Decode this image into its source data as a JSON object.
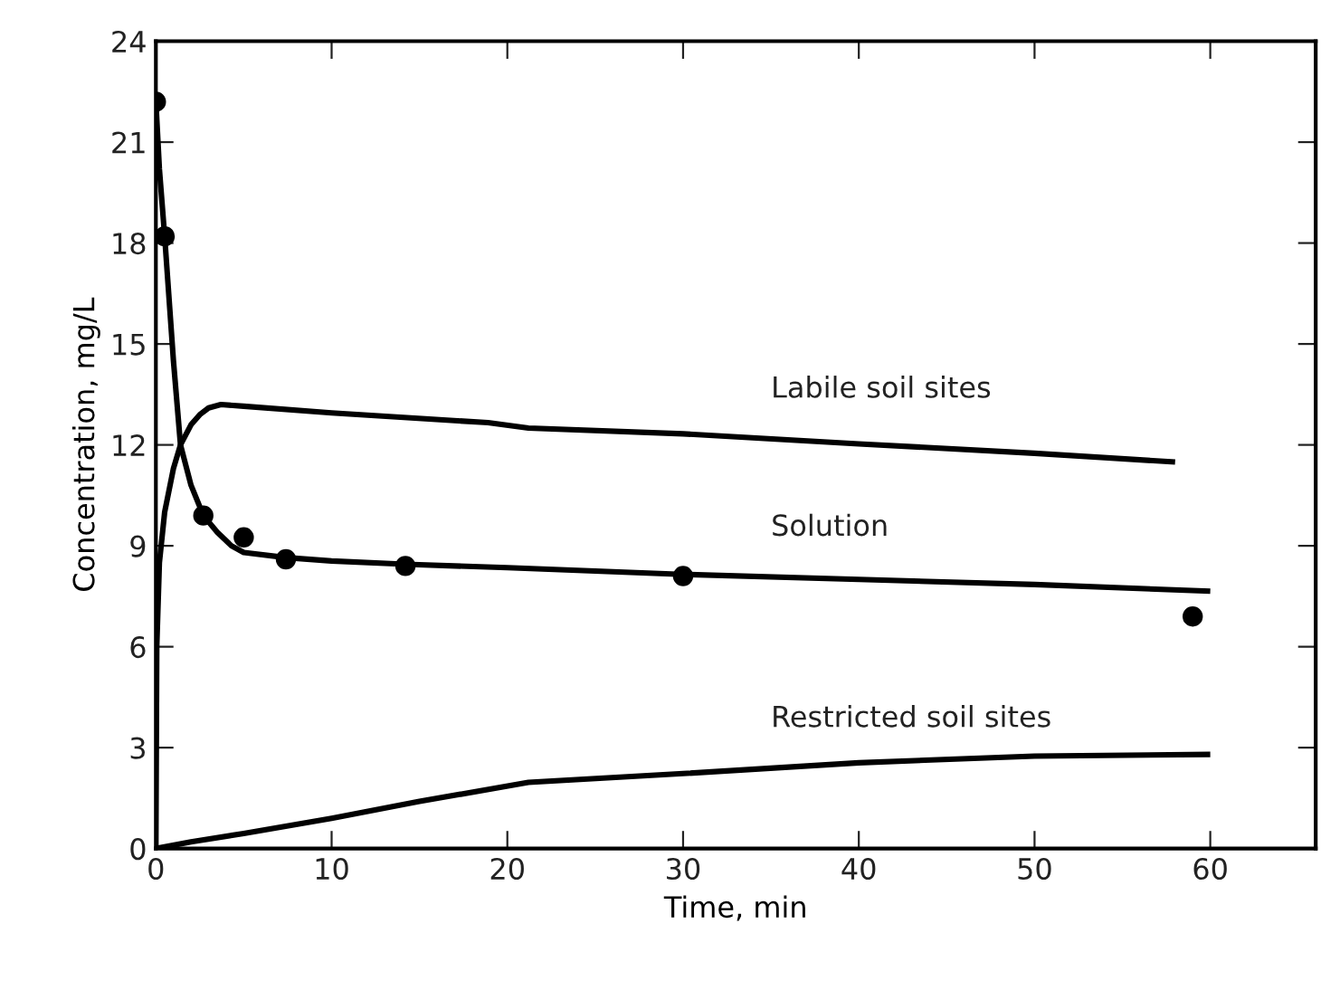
{
  "chart_data": {
    "type": "line",
    "xlabel": "Time, min",
    "ylabel": "Concentration, mg/L",
    "xlim": [
      0,
      66
    ],
    "ylim": [
      0,
      24
    ],
    "xticks": [
      0,
      10,
      20,
      30,
      40,
      50,
      60
    ],
    "yticks": [
      0,
      3,
      6,
      9,
      12,
      15,
      18,
      21,
      24
    ],
    "grid": false,
    "legend": false,
    "series": [
      {
        "name": "Labile soil sites",
        "color": "#000000",
        "marker": "none",
        "x": [
          0,
          0.05,
          0.2,
          0.5,
          1,
          1.4,
          2,
          2.5,
          3,
          3.7,
          5,
          10,
          18.9,
          21.2,
          30,
          40,
          50,
          58
        ],
        "values": [
          0,
          6,
          8.5,
          10,
          11.3,
          12,
          12.6,
          12.9,
          13.1,
          13.2,
          13.15,
          12.95,
          12.66,
          12.5,
          12.33,
          12.03,
          11.75,
          11.49
        ]
      },
      {
        "name": "Solution",
        "color": "#000000",
        "marker": "none",
        "x": [
          0,
          0.2,
          0.5,
          1,
          1.4,
          2,
          2.7,
          3.5,
          4.3,
          5,
          7.4,
          10,
          14.2,
          20,
          30,
          40,
          50,
          60
        ],
        "values": [
          22.2,
          20.2,
          18.2,
          14.5,
          12,
          10.8,
          9.9,
          9.4,
          9.0,
          8.8,
          8.65,
          8.55,
          8.45,
          8.35,
          8.15,
          8.0,
          7.85,
          7.65
        ]
      },
      {
        "name": "Restricted soil sites",
        "color": "#000000",
        "marker": "none",
        "x": [
          0,
          2,
          5,
          10,
          15,
          21.2,
          30,
          40,
          50,
          60
        ],
        "values": [
          0,
          0.2,
          0.45,
          0.9,
          1.4,
          1.97,
          2.23,
          2.55,
          2.75,
          2.8
        ]
      },
      {
        "type": "scatter",
        "color": "#000000",
        "marker": "circle",
        "x": [
          0,
          0.5,
          2.7,
          5,
          7.4,
          14.2,
          30,
          59
        ],
        "values": [
          22.2,
          18.2,
          9.9,
          9.25,
          8.6,
          8.4,
          8.1,
          6.9
        ]
      }
    ]
  }
}
